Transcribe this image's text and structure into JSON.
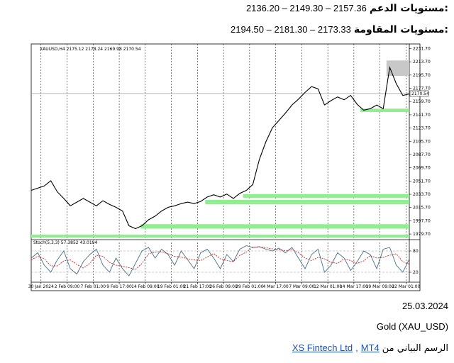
{
  "support": {
    "label": "مستويات الدعم:",
    "values": "2136.20 – 2149.30 – 2157.36"
  },
  "resistance": {
    "label": "مستويات المقاومة:",
    "values": "2194.50 – 2181.30 – 2173.33"
  },
  "chart_data": [
    {
      "type": "line",
      "title": "XAUUSD,H4 2175.12 2178.24 2169.98 2170.54",
      "series": [
        {
          "color": "#000000",
          "values": [
            2039,
            2042,
            2045,
            2052,
            2037,
            2028,
            2018,
            2023,
            2028,
            2023,
            2018,
            2025,
            2020,
            2016,
            2011,
            1991,
            1987,
            1991,
            1999,
            2004,
            2011,
            2016,
            2018,
            2021,
            2023,
            2021,
            2024,
            2030,
            2033,
            2030,
            2034,
            2028,
            2035,
            2039,
            2047,
            2081,
            2105,
            2124,
            2134,
            2144,
            2155,
            2163,
            2172,
            2180,
            2177,
            2155,
            2161,
            2166,
            2162,
            2168,
            2156,
            2148,
            2150,
            2155,
            2150,
            2206,
            2184,
            2168,
            2170
          ]
        }
      ],
      "xlim": [
        0,
        58
      ],
      "ylim": [
        1974,
        2236
      ],
      "yticks": [
        {
          "value": 2231.7,
          "label": "2231.70"
        },
        {
          "value": 2213.7,
          "label": "2213.70"
        },
        {
          "value": 2195.7,
          "label": "2195.70"
        },
        {
          "value": 2177.7,
          "label": "2177.70"
        },
        {
          "value": 2159.7,
          "label": "2159.70"
        },
        {
          "value": 2141.7,
          "label": "2141.70"
        },
        {
          "value": 2123.7,
          "label": "2123.70"
        },
        {
          "value": 2105.7,
          "label": "2105.70"
        },
        {
          "value": 2087.7,
          "label": "2087.70"
        },
        {
          "value": 2069.7,
          "label": "2069.70"
        },
        {
          "value": 2051.7,
          "label": "2051.70"
        },
        {
          "value": 2033.7,
          "label": "2033.70"
        },
        {
          "value": 2015.7,
          "label": "2015.70"
        },
        {
          "value": 1997.7,
          "label": "1997.70"
        },
        {
          "value": 1979.7,
          "label": "1979.70"
        }
      ],
      "current_price": 2170.54,
      "zones": [
        {
          "from": 2145.5,
          "to": 2150,
          "start": 50.5,
          "color": "#90ee90"
        },
        {
          "from": 2194.5,
          "to": 2215.5,
          "start": 54.5,
          "color": "#c8c8c8"
        },
        {
          "from": 2029,
          "to": 2034,
          "start": 32.5,
          "color": "#90ee90"
        },
        {
          "from": 2020,
          "to": 2026,
          "start": 26.7,
          "color": "#90ee90"
        },
        {
          "from": 1987,
          "to": 1993,
          "start": 16.8,
          "color": "#90ee90"
        },
        {
          "from": 1975,
          "to": 1979,
          "start": 0,
          "color": "#90ee90"
        }
      ],
      "grid": true
    },
    {
      "type": "line",
      "title": "Stoch(5,3,3) 57.3852 43.0194",
      "series": [
        {
          "color": "#4a6f8a",
          "values": [
            60,
            75,
            40,
            20,
            55,
            80,
            30,
            15,
            50,
            70,
            85,
            40,
            20,
            60,
            30,
            10,
            45,
            80,
            90,
            60,
            85,
            70,
            40,
            80,
            55,
            30,
            75,
            85,
            60,
            30,
            70,
            50,
            85,
            95,
            90,
            92,
            85,
            80,
            88,
            75,
            90,
            60,
            30,
            70,
            85,
            20,
            40,
            75,
            60,
            25,
            50,
            80,
            70,
            30,
            85,
            90,
            40,
            20,
            57
          ]
        },
        {
          "color": "#d62020",
          "dashed": true,
          "values": [
            55,
            65,
            58,
            38,
            38,
            52,
            55,
            42,
            32,
            45,
            68,
            65,
            48,
            40,
            37,
            33,
            28,
            45,
            72,
            77,
            78,
            72,
            65,
            63,
            58,
            55,
            53,
            63,
            73,
            58,
            53,
            50,
            68,
            77,
            90,
            92,
            89,
            86,
            84,
            81,
            84,
            75,
            60,
            53,
            62,
            58,
            48,
            45,
            58,
            53,
            45,
            52,
            67,
            60,
            62,
            68,
            72,
            50,
            43
          ]
        }
      ],
      "xlim": [
        0,
        58
      ],
      "ylim": [
        0,
        100
      ],
      "yticks": [
        80,
        20
      ],
      "xticks": [
        {
          "value": 1.5,
          "label": "30 Jan 2024"
        },
        {
          "value": 5.5,
          "label": "2 Feb 09:00"
        },
        {
          "value": 9.5,
          "label": "7 Feb 01:00"
        },
        {
          "value": 13.5,
          "label": "9 Feb 17:00"
        },
        {
          "value": 17.5,
          "label": "14 Feb 09:00"
        },
        {
          "value": 21.5,
          "label": "19 Feb 01:00"
        },
        {
          "value": 25.5,
          "label": "21 Feb 17:00"
        },
        {
          "value": 29.5,
          "label": "26 Feb 09:00"
        },
        {
          "value": 33.5,
          "label": "29 Feb 01:00"
        },
        {
          "value": 37.5,
          "label": "4 Mar 17:00"
        },
        {
          "value": 41.5,
          "label": "7 Mar 09:00"
        },
        {
          "value": 45.5,
          "label": "12 Mar 01:00"
        },
        {
          "value": 49.5,
          "label": "14 Mar 17:00"
        },
        {
          "value": 53.5,
          "label": "19 Mar 09:00"
        },
        {
          "value": 57.5,
          "label": "22 Mar 01:00"
        }
      ]
    }
  ],
  "date": "25.03.2024",
  "instrument": "Gold (XAU_USD)",
  "source": {
    "prefix": "الرسم البياني من",
    "link1": "XS Fintech Ltd",
    "separator": ",",
    "link2": "MT4"
  }
}
